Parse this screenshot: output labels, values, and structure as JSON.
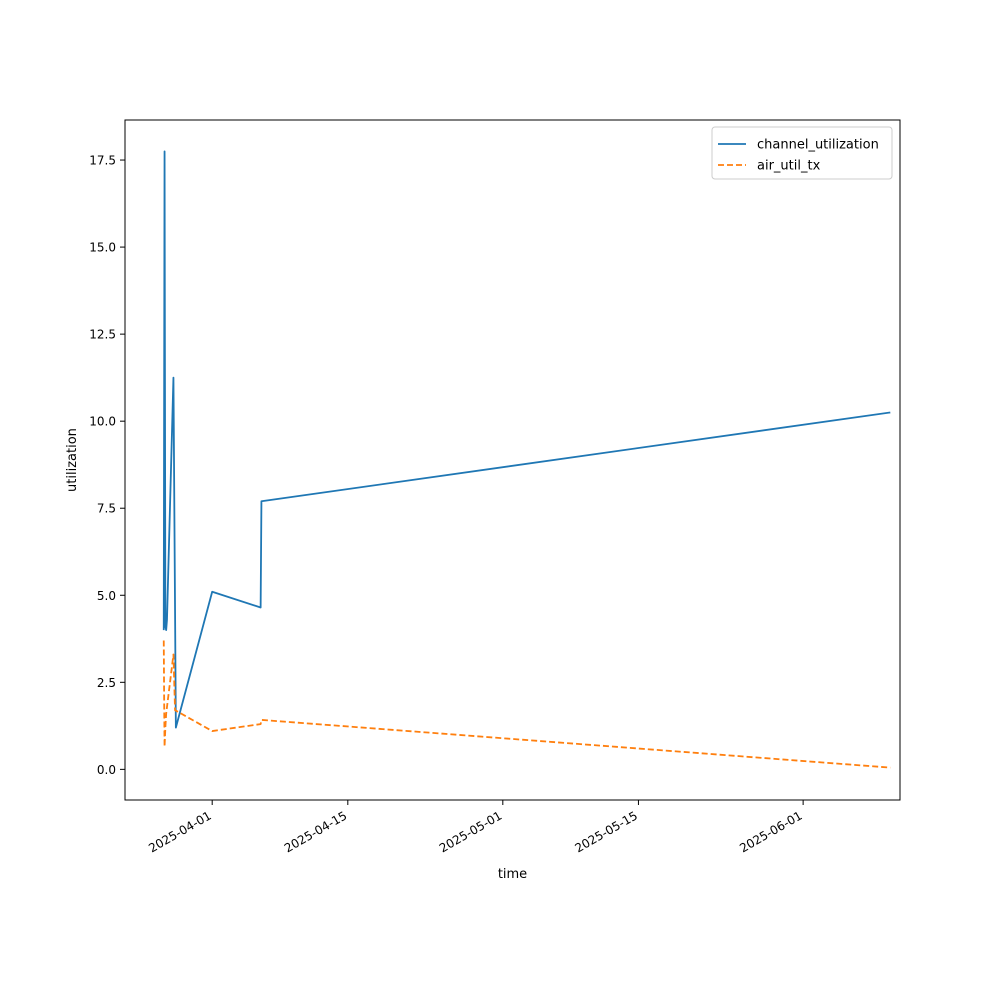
{
  "chart_data": {
    "type": "line",
    "xlabel": "time",
    "ylabel": "utilization",
    "x_type": "date",
    "xlim": [
      "2025-03-23",
      "2025-06-11"
    ],
    "ylim": [
      -0.88,
      18.65
    ],
    "x_ticks": [
      "2025-04-01",
      "2025-04-15",
      "2025-05-01",
      "2025-05-15",
      "2025-06-01"
    ],
    "y_ticks": [
      "0.0",
      "2.5",
      "5.0",
      "7.5",
      "10.0",
      "12.5",
      "15.0",
      "17.5"
    ],
    "grid": false,
    "legend_position": "top-right",
    "series": [
      {
        "name": "channel_utilization",
        "color": "#1f77b4",
        "line_style": "solid",
        "points": [
          [
            "2025-03-27T00:00",
            4.0
          ],
          [
            "2025-03-27T02:00",
            17.75
          ],
          [
            "2025-03-27T04:00",
            4.1
          ],
          [
            "2025-03-27T06:00",
            4.0
          ],
          [
            "2025-03-27T08:00",
            4.3
          ],
          [
            "2025-03-28T00:00",
            11.25
          ],
          [
            "2025-03-28T06:00",
            1.2
          ],
          [
            "2025-04-01T00:00",
            5.1
          ],
          [
            "2025-04-06T00:00",
            4.65
          ],
          [
            "2025-04-06T02:00",
            7.7
          ],
          [
            "2025-06-10T00:00",
            10.25
          ]
        ]
      },
      {
        "name": "air_util_tx",
        "color": "#ff7f0e",
        "line_style": "dashed",
        "points": [
          [
            "2025-03-27T00:00",
            3.7
          ],
          [
            "2025-03-27T01:00",
            2.0
          ],
          [
            "2025-03-27T02:00",
            0.65
          ],
          [
            "2025-03-27T04:00",
            1.2
          ],
          [
            "2025-03-27T06:00",
            1.6
          ],
          [
            "2025-03-28T00:00",
            3.3
          ],
          [
            "2025-03-28T04:00",
            1.7
          ],
          [
            "2025-04-01T00:00",
            1.1
          ],
          [
            "2025-04-06T00:00",
            1.3
          ],
          [
            "2025-04-06T02:00",
            1.42
          ],
          [
            "2025-06-10T00:00",
            0.05
          ]
        ]
      }
    ]
  }
}
